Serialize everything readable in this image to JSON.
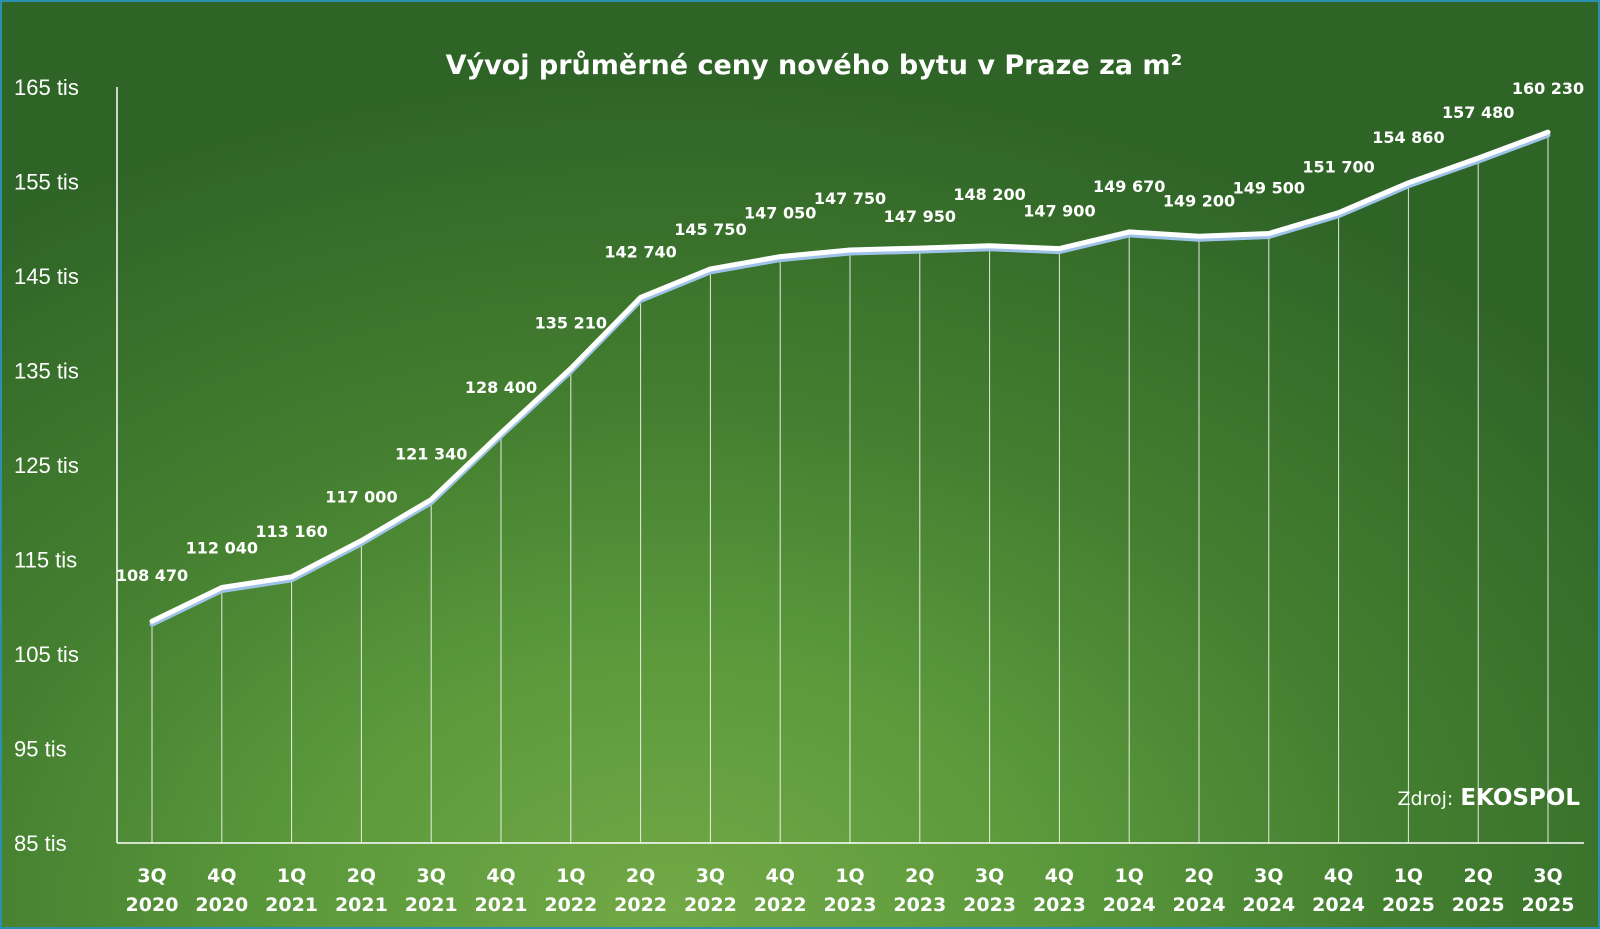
{
  "chart_data": {
    "type": "line",
    "title": "Vývoj průměrné ceny nového bytu v Praze za m²",
    "categories": [
      [
        "3Q",
        "2020"
      ],
      [
        "4Q",
        "2020"
      ],
      [
        "1Q",
        "2021"
      ],
      [
        "2Q",
        "2021"
      ],
      [
        "3Q",
        "2021"
      ],
      [
        "4Q",
        "2021"
      ],
      [
        "1Q",
        "2022"
      ],
      [
        "2Q",
        "2022"
      ],
      [
        "3Q",
        "2022"
      ],
      [
        "4Q",
        "2022"
      ],
      [
        "1Q",
        "2023"
      ],
      [
        "2Q",
        "2023"
      ],
      [
        "3Q",
        "2023"
      ],
      [
        "4Q",
        "2023"
      ],
      [
        "1Q",
        "2024"
      ],
      [
        "2Q",
        "2024"
      ],
      [
        "3Q",
        "2024"
      ],
      [
        "4Q",
        "2024"
      ],
      [
        "1Q",
        "2025"
      ],
      [
        "2Q",
        "2025"
      ],
      [
        "3Q",
        "2025"
      ]
    ],
    "values": [
      108470,
      112040,
      113160,
      117000,
      121340,
      128400,
      135210,
      142740,
      145750,
      147050,
      147750,
      147950,
      148200,
      147900,
      149670,
      149200,
      149500,
      151700,
      154860,
      157480,
      160230
    ],
    "data_labels": [
      "108 470",
      "112 040",
      "113 160",
      "117 000",
      "121 340",
      "128 400",
      "135 210",
      "142 740",
      "145 750",
      "147 050",
      "147 750",
      "147 950",
      "148 200",
      "147 900",
      "149 670",
      "149 200",
      "149 500",
      "151 700",
      "154 860",
      "157 480",
      "160 230"
    ],
    "ylim": [
      85000,
      165000
    ],
    "yticks": [
      85000,
      95000,
      105000,
      115000,
      125000,
      135000,
      145000,
      155000,
      165000
    ],
    "ytick_labels": [
      "85 tis",
      "95 tis",
      "105 tis",
      "115 tis",
      "125 tis",
      "135 tis",
      "145 tis",
      "155 tis",
      "165 tis"
    ],
    "grid": "vertical drop lines",
    "legend": "none",
    "line_color": "#ffffff",
    "line_shadow_color": "#9fc3e8"
  },
  "source": {
    "prefix": "Zdroj:",
    "name": "EKOSPOL"
  }
}
